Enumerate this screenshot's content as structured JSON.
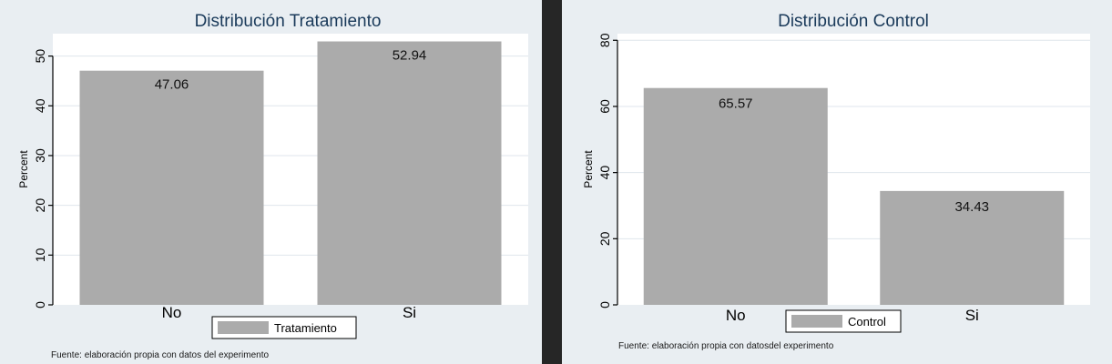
{
  "chart_data": [
    {
      "type": "bar",
      "title": "Distribución Tratamiento",
      "categories": [
        "No",
        "Si"
      ],
      "series": [
        {
          "name": "Tratamiento",
          "values": [
            47.06,
            52.94
          ]
        }
      ],
      "value_labels": [
        "47.06",
        "52.94"
      ],
      "ylabel": "Percent",
      "xlabel": "",
      "ylim": [
        0,
        54.5
      ],
      "yticks": [
        0,
        10,
        20,
        30,
        40,
        50
      ],
      "grid": true,
      "legend_position": "bottom-center",
      "bar_color": "#ababab",
      "note": "Fuente: elaboración propia con datos del experimento"
    },
    {
      "type": "bar",
      "title": "Distribución Control",
      "categories": [
        "No",
        "Si"
      ],
      "series": [
        {
          "name": "Control",
          "values": [
            65.57,
            34.43
          ]
        }
      ],
      "value_labels": [
        "65.57",
        "34.43"
      ],
      "ylabel": "Percent",
      "xlabel": "",
      "ylim": [
        0,
        82
      ],
      "yticks": [
        0,
        20,
        40,
        60,
        80
      ],
      "grid": true,
      "legend_position": "bottom-center",
      "bar_color": "#ababab",
      "note": "Fuente: elaboración propia con datosdel experimento"
    }
  ]
}
